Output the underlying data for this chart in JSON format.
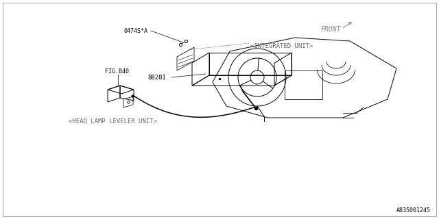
{
  "bg_color": "#ffffff",
  "border_color": "#aaaaaa",
  "line_color": "#000000",
  "label_color": "#666666",
  "fig_number": "FIG.B40",
  "part_number_main": "8828I",
  "part_number_small": "0474S*A",
  "label_head_lamp": "<HEAD LAMP LEVELER UNIT>",
  "label_integrated": "<INTEGRATED UNIT>",
  "label_front": "FRONT",
  "diagram_id": "A835001245",
  "label_fontsize": 6.5,
  "small_fontsize": 6
}
